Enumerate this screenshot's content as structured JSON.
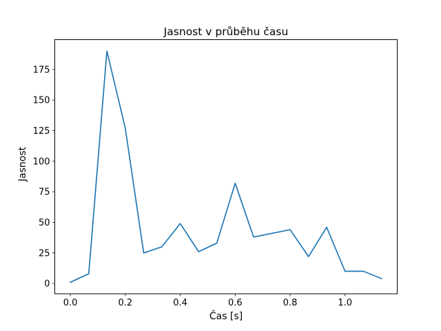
{
  "chart_data": {
    "type": "line",
    "title": "Jasnost v průběhu času",
    "xlabel": "Čas [s]",
    "ylabel": "Jasnost",
    "x": [
      0.0,
      0.067,
      0.133,
      0.2,
      0.267,
      0.333,
      0.4,
      0.467,
      0.533,
      0.6,
      0.667,
      0.733,
      0.8,
      0.867,
      0.933,
      1.0,
      1.067,
      1.133
    ],
    "y": [
      1,
      8,
      190,
      127,
      25,
      30,
      49,
      26,
      33,
      82,
      38,
      41,
      44,
      22,
      46,
      10,
      10,
      4
    ],
    "xtick_values": [
      0.0,
      0.2,
      0.4,
      0.6,
      0.8,
      1.0
    ],
    "xtick_labels": [
      "0.0",
      "0.2",
      "0.4",
      "0.6",
      "0.8",
      "1.0"
    ],
    "ytick_values": [
      0,
      25,
      50,
      75,
      100,
      125,
      150,
      175
    ],
    "ytick_labels": [
      "0",
      "25",
      "50",
      "75",
      "100",
      "125",
      "150",
      "175"
    ],
    "xlim": [
      -0.0567,
      1.19
    ],
    "ylim": [
      -8.4,
      199.4
    ],
    "grid": false,
    "legend": null,
    "line_color": "#1f77b4",
    "axis_color": "#000000",
    "background_color": "#ffffff"
  }
}
